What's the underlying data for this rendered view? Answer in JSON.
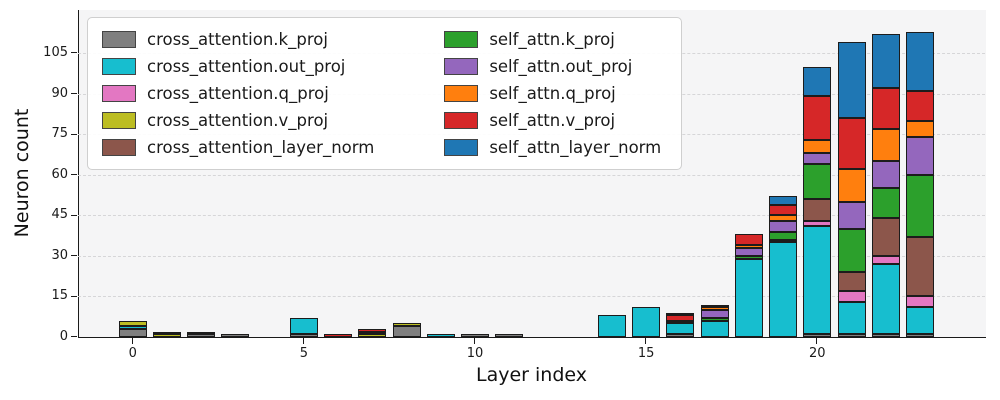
{
  "chart_data": {
    "type": "stacked_bar",
    "title": "",
    "xlabel": "Layer index",
    "ylabel": "Neuron count",
    "x": [
      0,
      1,
      2,
      3,
      4,
      5,
      6,
      7,
      8,
      9,
      10,
      11,
      12,
      13,
      14,
      15,
      16,
      17,
      18,
      19,
      20,
      21,
      22,
      23
    ],
    "xticks": [
      0,
      5,
      10,
      15,
      20
    ],
    "yticks": [
      0,
      15,
      30,
      45,
      60,
      75,
      90,
      105
    ],
    "xlim": [
      -1.6,
      24.9
    ],
    "ylim": [
      0,
      121
    ],
    "grid": "horizontal-dashed",
    "legend": {
      "position": "upper-left",
      "columns": 2
    },
    "series": [
      {
        "name": "cross_attention.k_proj",
        "color": "#7f7f7f",
        "values": [
          3,
          0,
          1,
          1,
          0,
          1,
          0,
          0,
          4,
          0,
          1,
          1,
          0,
          0,
          0,
          0,
          1,
          0,
          0,
          0,
          1,
          1,
          1,
          1
        ]
      },
      {
        "name": "cross_attention.out_proj",
        "color": "#17becf",
        "values": [
          1,
          0,
          0,
          0,
          0,
          6,
          0,
          0,
          0,
          1,
          0,
          0,
          0,
          0,
          8,
          11,
          4,
          6,
          29,
          35,
          40,
          12,
          26,
          10
        ]
      },
      {
        "name": "cross_attention.q_proj",
        "color": "#e377c2",
        "values": [
          0,
          0,
          0,
          0,
          0,
          0,
          0,
          0,
          0,
          0,
          0,
          0,
          0,
          0,
          0,
          0,
          0,
          0,
          0,
          0,
          2,
          4,
          3,
          4
        ]
      },
      {
        "name": "cross_attention.v_proj",
        "color": "#bcbd22",
        "values": [
          2,
          1,
          1,
          0,
          0,
          0,
          0,
          1,
          1,
          0,
          0,
          0,
          0,
          0,
          0,
          0,
          0,
          0,
          0,
          0,
          0,
          0,
          0,
          0
        ]
      },
      {
        "name": "cross_attention_layer_norm",
        "color": "#8c564b",
        "values": [
          0,
          0,
          0,
          0,
          0,
          0,
          0,
          1,
          0,
          0,
          0,
          0,
          0,
          0,
          0,
          0,
          0,
          0,
          0,
          1,
          8,
          7,
          14,
          22
        ]
      },
      {
        "name": "self_attn.k_proj",
        "color": "#2ca02c",
        "values": [
          0,
          0,
          0,
          0,
          0,
          0,
          0,
          0,
          0,
          0,
          0,
          0,
          0,
          0,
          0,
          0,
          1,
          1,
          1,
          3,
          13,
          16,
          11,
          23
        ]
      },
      {
        "name": "self_attn.out_proj",
        "color": "#9467bd",
        "values": [
          0,
          1,
          0,
          0,
          0,
          0,
          0,
          0,
          0,
          0,
          0,
          0,
          0,
          0,
          0,
          0,
          0,
          3,
          3,
          4,
          4,
          10,
          10,
          14
        ]
      },
      {
        "name": "self_attn.q_proj",
        "color": "#ff7f0e",
        "values": [
          0,
          0,
          0,
          0,
          0,
          0,
          0,
          0,
          0,
          0,
          0,
          0,
          0,
          0,
          0,
          0,
          0,
          1,
          1,
          2,
          5,
          12,
          12,
          6
        ]
      },
      {
        "name": "self_attn.v_proj",
        "color": "#d62728",
        "values": [
          0,
          0,
          0,
          0,
          0,
          0,
          1,
          1,
          0,
          0,
          0,
          0,
          0,
          0,
          0,
          0,
          2,
          1,
          4,
          4,
          16,
          19,
          15,
          11
        ]
      },
      {
        "name": "self_attn_layer_norm",
        "color": "#1f77b4",
        "values": [
          0,
          0,
          0,
          0,
          0,
          0,
          0,
          0,
          0,
          0,
          0,
          0,
          0,
          0,
          0,
          0,
          1,
          0,
          0,
          3,
          11,
          28,
          20,
          22
        ]
      }
    ]
  }
}
